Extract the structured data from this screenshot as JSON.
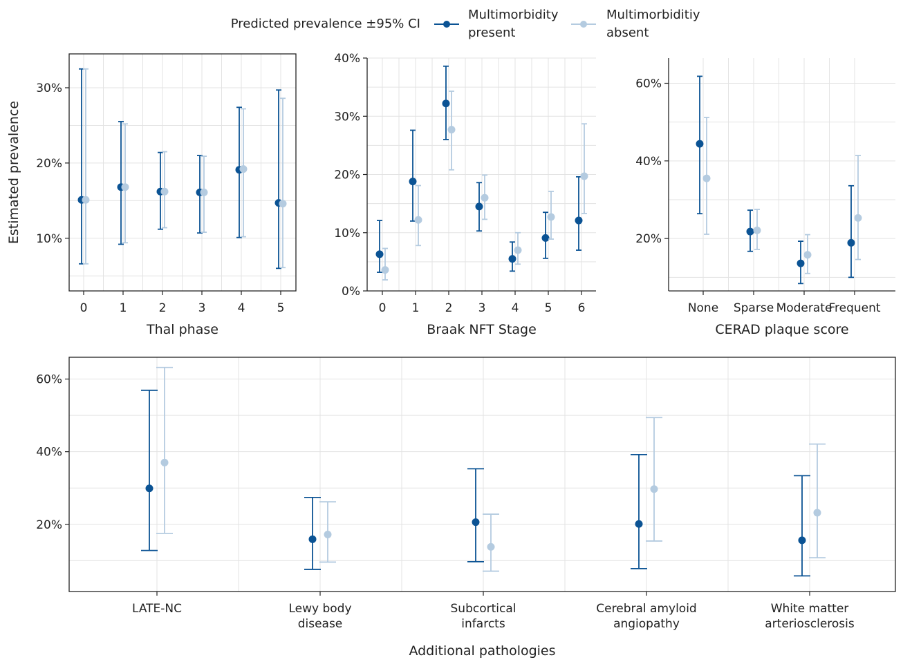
{
  "colors": {
    "present": "#0b5394",
    "absent": "#b4cbe0",
    "grid": "#e3e3e3",
    "frame": "#222222"
  },
  "legend": {
    "title": "Predicted prevalence ±95% CI",
    "present_line1": "Multimorbidity",
    "present_line2": "present",
    "absent_line1": "Multimorbiditiy",
    "absent_line2": "absent"
  },
  "chart_data": [
    {
      "type": "scatter",
      "id": "thal",
      "xlabel": "Thal phase",
      "ylabel": "Estimated prevalence",
      "categories": [
        "0",
        "1",
        "2",
        "3",
        "4",
        "5"
      ],
      "ylim": [
        3,
        34.5
      ],
      "yticks": [
        10,
        20,
        30
      ],
      "yticklabels": [
        "10%",
        "20%",
        "30%"
      ],
      "grid": true,
      "frame": "full",
      "series": [
        {
          "name": "Multimorbidity present",
          "values": [
            15.1,
            16.8,
            16.2,
            16.1,
            19.1,
            14.7
          ],
          "lower": [
            6.6,
            9.2,
            11.2,
            10.7,
            10.1,
            6.0
          ],
          "upper": [
            32.5,
            25.5,
            21.4,
            21.0,
            27.4,
            29.7
          ]
        },
        {
          "name": "Multimorbiditiy absent",
          "values": [
            15.1,
            16.8,
            16.2,
            16.1,
            19.2,
            14.6
          ],
          "lower": [
            6.6,
            9.4,
            11.4,
            10.8,
            10.2,
            6.1
          ],
          "upper": [
            32.5,
            25.2,
            21.5,
            20.9,
            27.2,
            28.6
          ]
        }
      ]
    },
    {
      "type": "scatter",
      "id": "braak",
      "xlabel": "Braak NFT Stage",
      "categories": [
        "0",
        "1",
        "2",
        "3",
        "4",
        "5",
        "6"
      ],
      "ylim": [
        0,
        40
      ],
      "yticks": [
        0,
        10,
        20,
        30,
        40
      ],
      "yticklabels": [
        "0%",
        "10%",
        "20%",
        "30%",
        "40%"
      ],
      "grid": true,
      "frame": "axes",
      "series": [
        {
          "name": "Multimorbidity present",
          "values": [
            6.3,
            18.8,
            32.2,
            14.5,
            5.5,
            9.1,
            12.1
          ],
          "lower": [
            3.2,
            12.0,
            26.0,
            10.3,
            3.4,
            5.6,
            7.0
          ],
          "upper": [
            12.1,
            27.6,
            38.6,
            18.6,
            8.4,
            13.5,
            19.6
          ]
        },
        {
          "name": "Multimorbiditiy absent",
          "values": [
            3.6,
            12.2,
            27.7,
            16.0,
            7.0,
            12.7,
            19.7
          ],
          "lower": [
            1.9,
            7.8,
            20.8,
            12.3,
            4.6,
            8.9,
            13.3
          ],
          "upper": [
            7.3,
            18.1,
            34.3,
            19.9,
            10.0,
            17.1,
            28.7
          ]
        }
      ]
    },
    {
      "type": "scatter",
      "id": "cerad",
      "xlabel": "CERAD plaque score",
      "categories": [
        "None",
        "Sparse",
        "Moderate",
        "Frequent"
      ],
      "ylim": [
        6.5,
        66.5
      ],
      "yticks": [
        20,
        40,
        60
      ],
      "yticklabels": [
        "20%",
        "40%",
        "60%"
      ],
      "grid": true,
      "frame": "axes",
      "series": [
        {
          "name": "Multimorbidity present",
          "values": [
            44.4,
            21.8,
            13.6,
            18.9
          ],
          "lower": [
            26.4,
            16.7,
            8.4,
            10.0
          ],
          "upper": [
            61.8,
            27.3,
            19.3,
            33.6
          ]
        },
        {
          "name": "Multimorbiditiy absent",
          "values": [
            35.5,
            22.1,
            15.8,
            25.3
          ],
          "lower": [
            21.1,
            17.2,
            11.0,
            14.6
          ],
          "upper": [
            51.2,
            27.5,
            21.0,
            41.4
          ]
        }
      ]
    },
    {
      "type": "scatter",
      "id": "additional",
      "xlabel": "Additional pathologies",
      "categories": [
        [
          "LATE-NC"
        ],
        [
          "Lewy body",
          "disease"
        ],
        [
          "Subcortical",
          "infarcts"
        ],
        [
          "Cerebral amyloid",
          "angiopathy"
        ],
        [
          "White matter",
          "arteriosclerosis"
        ]
      ],
      "ylim": [
        1.5,
        66
      ],
      "yticks": [
        20,
        40,
        60
      ],
      "yticklabels": [
        "20%",
        "40%",
        "60%"
      ],
      "grid": true,
      "frame": "full",
      "series": [
        {
          "name": "Multimorbidity present",
          "values": [
            29.9,
            15.9,
            20.6,
            20.1,
            15.6
          ],
          "lower": [
            12.8,
            7.6,
            9.7,
            7.8,
            5.8
          ],
          "upper": [
            56.9,
            27.4,
            35.3,
            39.2,
            33.4
          ]
        },
        {
          "name": "Multimorbiditiy absent",
          "values": [
            37.0,
            17.2,
            13.8,
            29.7,
            23.2
          ],
          "lower": [
            17.5,
            9.6,
            7.1,
            15.4,
            10.8
          ],
          "upper": [
            63.2,
            26.2,
            22.8,
            49.4,
            42.1
          ]
        }
      ]
    }
  ]
}
